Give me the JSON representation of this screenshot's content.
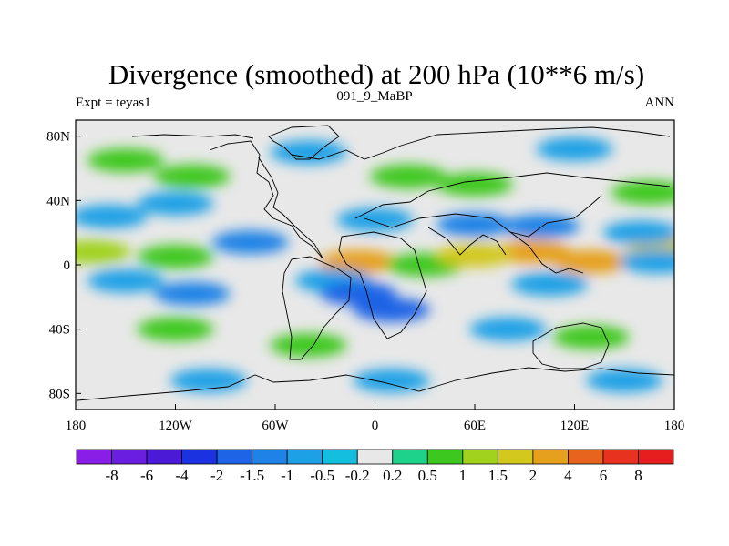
{
  "chart_data": {
    "type": "heatmap",
    "title": "Divergence (smoothed) at 200 hPa (10**6 m/s)",
    "subtitle_left": "Expt = teyas1",
    "subtitle_center": "091_9_MaBP",
    "subtitle_right": "ANN",
    "x_range": [
      -180,
      180
    ],
    "y_range": [
      -90,
      90
    ],
    "x_ticks": [
      {
        "value": -180,
        "label": "180"
      },
      {
        "value": -120,
        "label": "120W"
      },
      {
        "value": -60,
        "label": "60W"
      },
      {
        "value": 0,
        "label": "0"
      },
      {
        "value": 60,
        "label": "60E"
      },
      {
        "value": 120,
        "label": "120E"
      },
      {
        "value": 180,
        "label": "180"
      }
    ],
    "y_ticks": [
      {
        "value": 80,
        "label": "80N"
      },
      {
        "value": 40,
        "label": "40N"
      },
      {
        "value": 0,
        "label": "0"
      },
      {
        "value": -40,
        "label": "40S"
      },
      {
        "value": -80,
        "label": "80S"
      }
    ],
    "contour_levels": [
      -8,
      -6,
      -4,
      -2,
      -1.5,
      -1,
      -0.5,
      -0.2,
      0.2,
      0.5,
      1,
      1.5,
      2,
      4,
      6,
      8
    ],
    "colorbar_labels": [
      "-8",
      "-6",
      "-4",
      "-2",
      "-1.5",
      "-1",
      "-0.5",
      "-0.2",
      "0.2",
      "0.5",
      "1",
      "1.5",
      "2",
      "4",
      "6",
      "8"
    ],
    "colorbar_colors": [
      "#8a1ee6",
      "#6a1ee0",
      "#4a1ad6",
      "#1a32e0",
      "#1e64e6",
      "#1e82e6",
      "#1ea0e6",
      "#14bede",
      "#e8e8e8",
      "#1ed28c",
      "#3cc81e",
      "#a0d21e",
      "#d2c81e",
      "#e6a01e",
      "#e6641e",
      "#e6321e",
      "#e61e1e"
    ],
    "field_features": [
      {
        "lon": 175,
        "lat": 10,
        "value": 1.6
      },
      {
        "lon": -170,
        "lat": 8,
        "value": 1.3
      },
      {
        "lon": -120,
        "lat": 5,
        "value": 0.9
      },
      {
        "lon": -160,
        "lat": 30,
        "value": -0.8
      },
      {
        "lon": -120,
        "lat": 38,
        "value": -0.7
      },
      {
        "lon": -150,
        "lat": -10,
        "value": -0.9
      },
      {
        "lon": -110,
        "lat": -18,
        "value": -1.2
      },
      {
        "lon": -120,
        "lat": -40,
        "value": 0.9
      },
      {
        "lon": -75,
        "lat": 14,
        "value": -1.2
      },
      {
        "lon": -10,
        "lat": 2,
        "value": 3.5
      },
      {
        "lon": 30,
        "lat": 0,
        "value": 0.8
      },
      {
        "lon": -25,
        "lat": -10,
        "value": -1.0
      },
      {
        "lon": -10,
        "lat": -18,
        "value": -1.9
      },
      {
        "lon": 10,
        "lat": -28,
        "value": -1.6
      },
      {
        "lon": -40,
        "lat": -50,
        "value": 0.9
      },
      {
        "lon": 0,
        "lat": 28,
        "value": -0.9
      },
      {
        "lon": 60,
        "lat": 25,
        "value": -1.4
      },
      {
        "lon": 100,
        "lat": 24,
        "value": -1.1
      },
      {
        "lon": 20,
        "lat": 55,
        "value": 0.7
      },
      {
        "lon": 95,
        "lat": 8,
        "value": 2.0
      },
      {
        "lon": 130,
        "lat": 2,
        "value": 2.6
      },
      {
        "lon": 60,
        "lat": 6,
        "value": 1.5
      },
      {
        "lon": 160,
        "lat": 20,
        "value": -1.0
      },
      {
        "lon": 170,
        "lat": 2,
        "value": -1.0
      },
      {
        "lon": 105,
        "lat": -12,
        "value": -0.8
      },
      {
        "lon": 80,
        "lat": -40,
        "value": -0.8
      },
      {
        "lon": 130,
        "lat": -45,
        "value": 0.8
      },
      {
        "lon": -100,
        "lat": -72,
        "value": -0.7
      },
      {
        "lon": 10,
        "lat": -72,
        "value": -0.7
      },
      {
        "lon": 150,
        "lat": -72,
        "value": -0.6
      },
      {
        "lon": -40,
        "lat": 70,
        "value": -0.8
      },
      {
        "lon": 120,
        "lat": 72,
        "value": -0.6
      },
      {
        "lon": -150,
        "lat": 65,
        "value": 0.6
      },
      {
        "lon": -110,
        "lat": 55,
        "value": 0.7
      },
      {
        "lon": 60,
        "lat": 50,
        "value": 0.6
      },
      {
        "lon": 165,
        "lat": 45,
        "value": 0.7
      }
    ]
  }
}
